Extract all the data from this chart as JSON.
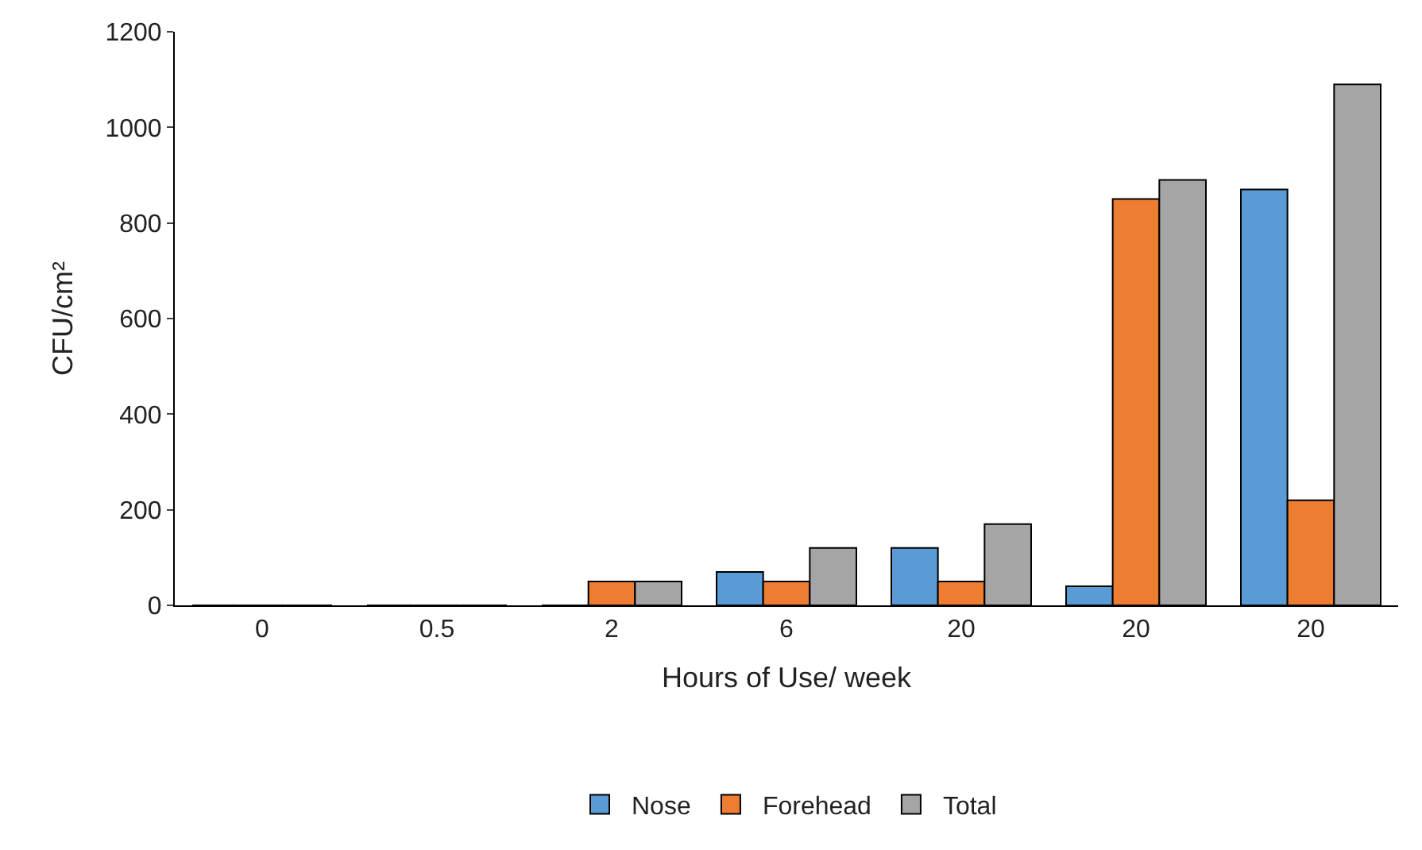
{
  "chart_data": {
    "type": "bar",
    "xlabel": "Hours of Use/ week",
    "ylabel": "CFU/cm²",
    "categories": [
      "0",
      "0.5",
      "2",
      "6",
      "20",
      "20",
      "20"
    ],
    "series": [
      {
        "name": "Nose",
        "color": "#5b9bd5",
        "values": [
          0,
          0,
          0,
          70,
          120,
          40,
          870
        ]
      },
      {
        "name": "Forehead",
        "color": "#ed7d31",
        "values": [
          0,
          0,
          50,
          50,
          50,
          850,
          220
        ]
      },
      {
        "name": "Total",
        "color": "#a5a5a5",
        "values": [
          0,
          0,
          50,
          120,
          170,
          890,
          1090
        ]
      }
    ],
    "ylim": [
      0,
      1200
    ],
    "yticks": [
      0,
      200,
      400,
      600,
      800,
      1000,
      1200
    ],
    "legend": "bottom"
  }
}
